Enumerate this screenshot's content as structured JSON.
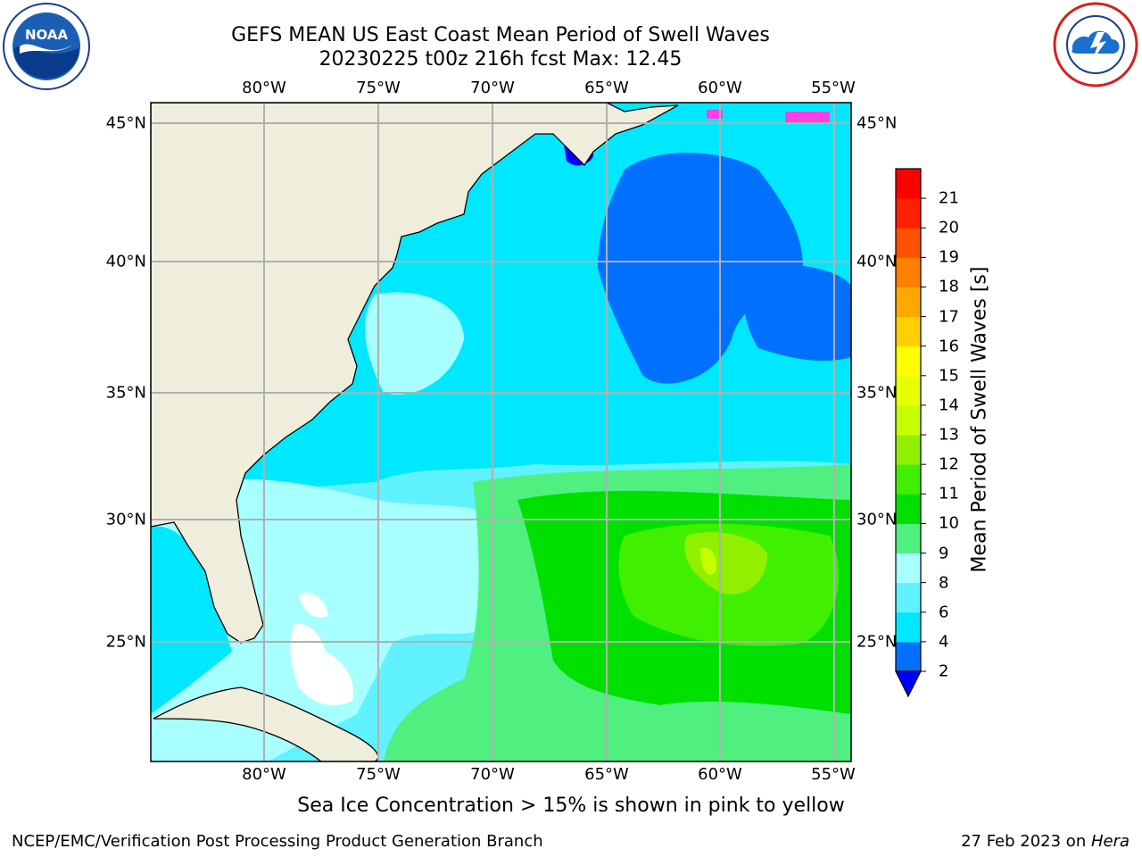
{
  "header": {
    "title_line1": "GEFS MEAN US East Coast Mean Period of Swell Waves",
    "title_line2": "20230225 t00z 216h fcst   Max: 12.45"
  },
  "subtitle": "Sea Ice Concentration > 15% is shown in pink to yellow",
  "footer": {
    "left": "NCEP/EMC/Verification Post Processing Product Generation Branch",
    "date": "27 Feb 2023 on ",
    "host": "Hera"
  },
  "logos": {
    "left": {
      "text": "NOAA",
      "icon": "noaa-logo-icon"
    },
    "right": {
      "icon": "nws-logo-icon"
    }
  },
  "map": {
    "lon_labels": [
      "80°W",
      "75°W",
      "70°W",
      "65°W",
      "60°W",
      "55°W"
    ],
    "lat_labels": [
      "45°N",
      "40°N",
      "35°N",
      "30°N",
      "25°N"
    ],
    "land_color": "#efeedd",
    "grid_color": "#b0b0b0"
  },
  "colorbar": {
    "title": "Mean Period of Swell Waves [s]",
    "ticks": [
      "2",
      "4",
      "6",
      "8",
      "9",
      "10",
      "11",
      "12",
      "13",
      "14",
      "15",
      "16",
      "17",
      "18",
      "19",
      "20",
      "21"
    ],
    "under_color": "#0000ff",
    "colors": [
      "#0070ff",
      "#00e8ff",
      "#60f2ff",
      "#a8ffff",
      "#50f080",
      "#00e000",
      "#40f000",
      "#90f000",
      "#c8ff00",
      "#e8ff00",
      "#ffff00",
      "#ffd000",
      "#ffa800",
      "#ff8000",
      "#ff5000",
      "#ff2000",
      "#ff0000"
    ]
  }
}
